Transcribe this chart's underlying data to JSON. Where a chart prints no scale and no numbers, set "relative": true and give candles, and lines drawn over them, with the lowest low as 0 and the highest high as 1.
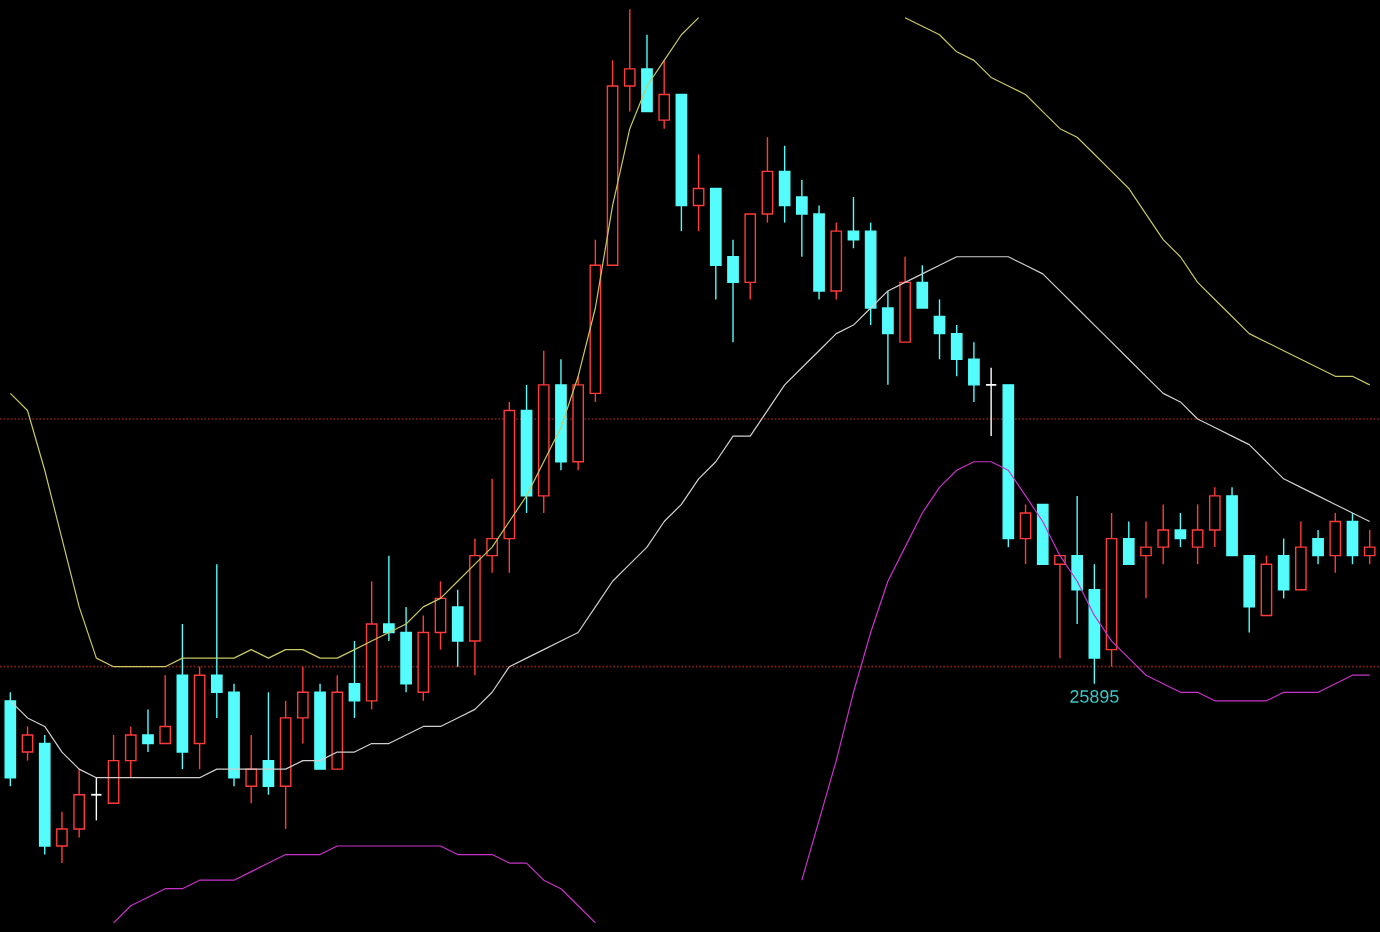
{
  "chart_data": {
    "type": "candlestick",
    "relative": true,
    "categories": [
      null,
      null,
      null,
      null,
      null,
      null,
      null,
      null,
      null,
      null,
      null,
      null,
      null,
      null,
      null,
      null,
      null,
      null,
      null,
      null,
      null,
      null,
      null,
      null,
      null,
      null,
      null,
      null,
      null,
      null,
      null,
      null,
      null,
      null,
      null,
      null,
      null,
      null,
      null,
      null,
      null,
      null,
      null,
      null,
      null,
      null,
      null,
      null,
      null,
      null,
      null,
      null,
      null,
      null,
      null,
      null,
      null,
      null,
      null,
      null,
      null,
      null,
      null,
      null,
      null,
      null,
      null,
      null,
      null,
      null,
      null,
      null,
      null,
      null,
      null,
      null,
      null,
      null,
      null,
      null
    ],
    "ohlc": [
      [
        0.19,
        0.2,
        0.09,
        0.1
      ],
      [
        0.13,
        0.16,
        0.12,
        0.15
      ],
      [
        0.14,
        0.15,
        0.01,
        0.02
      ],
      [
        0.02,
        0.06,
        0,
        0.04
      ],
      [
        0.04,
        0.11,
        0.03,
        0.08
      ],
      [
        0.08,
        0.1,
        0.05,
        0.08
      ],
      [
        0.07,
        0.15,
        0.07,
        0.12
      ],
      [
        0.12,
        0.16,
        0.1,
        0.15
      ],
      [
        0.15,
        0.18,
        0.13,
        0.14
      ],
      [
        0.14,
        0.22,
        0.14,
        0.16
      ],
      [
        0.22,
        0.28,
        0.11,
        0.13
      ],
      [
        0.14,
        0.23,
        0.11,
        0.22
      ],
      [
        0.22,
        0.35,
        0.17,
        0.2
      ],
      [
        0.2,
        0.21,
        0.09,
        0.1
      ],
      [
        0.09,
        0.15,
        0.07,
        0.11
      ],
      [
        0.12,
        0.2,
        0.08,
        0.09
      ],
      [
        0.09,
        0.19,
        0.04,
        0.17
      ],
      [
        0.17,
        0.23,
        0.14,
        0.2
      ],
      [
        0.2,
        0.21,
        0.11,
        0.11
      ],
      [
        0.11,
        0.22,
        0.11,
        0.2
      ],
      [
        0.21,
        0.26,
        0.17,
        0.19
      ],
      [
        0.19,
        0.33,
        0.18,
        0.28
      ],
      [
        0.28,
        0.36,
        0.26,
        0.27
      ],
      [
        0.27,
        0.3,
        0.2,
        0.21
      ],
      [
        0.2,
        0.29,
        0.19,
        0.27
      ],
      [
        0.27,
        0.33,
        0.25,
        0.31
      ],
      [
        0.3,
        0.32,
        0.23,
        0.26
      ],
      [
        0.26,
        0.38,
        0.22,
        0.36
      ],
      [
        0.36,
        0.45,
        0.34,
        0.38
      ],
      [
        0.38,
        0.54,
        0.34,
        0.53
      ],
      [
        0.53,
        0.56,
        0.41,
        0.43
      ],
      [
        0.43,
        0.6,
        0.41,
        0.56
      ],
      [
        0.56,
        0.59,
        0.46,
        0.47
      ],
      [
        0.47,
        0.57,
        0.46,
        0.56
      ],
      [
        0.55,
        0.73,
        0.54,
        0.7
      ],
      [
        0.7,
        0.94,
        0.7,
        0.91
      ],
      [
        0.91,
        1,
        0.88,
        0.93
      ],
      [
        0.93,
        0.97,
        0.88,
        0.88
      ],
      [
        0.87,
        0.94,
        0.86,
        0.9
      ],
      [
        0.9,
        0.9,
        0.74,
        0.77
      ],
      [
        0.77,
        0.83,
        0.74,
        0.79
      ],
      [
        0.79,
        0.79,
        0.66,
        0.7
      ],
      [
        0.71,
        0.73,
        0.61,
        0.68
      ],
      [
        0.68,
        0.76,
        0.66,
        0.76
      ],
      [
        0.76,
        0.85,
        0.75,
        0.81
      ],
      [
        0.81,
        0.84,
        0.75,
        0.77
      ],
      [
        0.78,
        0.8,
        0.71,
        0.76
      ],
      [
        0.76,
        0.77,
        0.66,
        0.67
      ],
      [
        0.67,
        0.75,
        0.66,
        0.74
      ],
      [
        0.74,
        0.78,
        0.72,
        0.73
      ],
      [
        0.74,
        0.75,
        0.63,
        0.65
      ],
      [
        0.65,
        0.67,
        0.56,
        0.62
      ],
      [
        0.61,
        0.71,
        0.61,
        0.68
      ],
      [
        0.68,
        0.7,
        0.65,
        0.65
      ],
      [
        0.64,
        0.66,
        0.59,
        0.62
      ],
      [
        0.62,
        0.63,
        0.57,
        0.59
      ],
      [
        0.59,
        0.61,
        0.54,
        0.56
      ],
      [
        0.56,
        0.58,
        0.5,
        0.56
      ],
      [
        0.56,
        0.56,
        0.37,
        0.38
      ],
      [
        0.38,
        0.42,
        0.35,
        0.41
      ],
      [
        0.42,
        0.42,
        0.35,
        0.35
      ],
      [
        0.35,
        0.36,
        0.24,
        0.36
      ],
      [
        0.36,
        0.43,
        0.28,
        0.32
      ],
      [
        0.32,
        0.35,
        0.21,
        0.24
      ],
      [
        0.25,
        0.41,
        0.23,
        0.38
      ],
      [
        0.38,
        0.4,
        0.35,
        0.35
      ],
      [
        0.36,
        0.4,
        0.31,
        0.37
      ],
      [
        0.37,
        0.42,
        0.35,
        0.39
      ],
      [
        0.39,
        0.41,
        0.37,
        0.38
      ],
      [
        0.37,
        0.42,
        0.35,
        0.39
      ],
      [
        0.39,
        0.44,
        0.37,
        0.43
      ],
      [
        0.43,
        0.44,
        0.36,
        0.36
      ],
      [
        0.36,
        0.36,
        0.27,
        0.3
      ],
      [
        0.29,
        0.36,
        0.29,
        0.35
      ],
      [
        0.36,
        0.38,
        0.31,
        0.32
      ],
      [
        0.32,
        0.4,
        0.32,
        0.37
      ],
      [
        0.38,
        0.39,
        0.35,
        0.36
      ],
      [
        0.36,
        0.41,
        0.34,
        0.4
      ],
      [
        0.4,
        0.41,
        0.35,
        0.36
      ],
      [
        0.36,
        0.39,
        0.35,
        0.37
      ]
    ],
    "colors": [
      "#54fcfc",
      "#ff3b3b",
      "#54fcfc",
      "#ff3b3b",
      "#ff3b3b",
      "#ffffff",
      "#ff3b3b",
      "#ff3b3b",
      "#54fcfc",
      "#ff3b3b",
      "#54fcfc",
      "#ff3b3b",
      "#54fcfc",
      "#54fcfc",
      "#ff3b3b",
      "#54fcfc",
      "#ff3b3b",
      "#ff3b3b",
      "#54fcfc",
      "#ff3b3b",
      "#54fcfc",
      "#ff3b3b",
      "#54fcfc",
      "#54fcfc",
      "#ff3b3b",
      "#ff3b3b",
      "#54fcfc",
      "#ff3b3b",
      "#ff3b3b",
      "#ff3b3b",
      "#54fcfc",
      "#ff3b3b",
      "#54fcfc",
      "#ff3b3b",
      "#ff3b3b",
      "#ff3b3b",
      "#ff3b3b",
      "#54fcfc",
      "#ff3b3b",
      "#54fcfc",
      "#ff3b3b",
      "#54fcfc",
      "#54fcfc",
      "#ff3b3b",
      "#ff3b3b",
      "#54fcfc",
      "#54fcfc",
      "#54fcfc",
      "#ff3b3b",
      "#54fcfc",
      "#54fcfc",
      "#54fcfc",
      "#ff3b3b",
      "#54fcfc",
      "#54fcfc",
      "#54fcfc",
      "#54fcfc",
      "#ffffff",
      "#54fcfc",
      "#ff3b3b",
      "#54fcfc",
      "#ff3b3b",
      "#54fcfc",
      "#54fcfc",
      "#ff3b3b",
      "#54fcfc",
      "#ff3b3b",
      "#ff3b3b",
      "#54fcfc",
      "#ff3b3b",
      "#ff3b3b",
      "#54fcfc",
      "#54fcfc",
      "#ff3b3b",
      "#54fcfc",
      "#ff3b3b",
      "#54fcfc",
      "#ff3b3b",
      "#54fcfc",
      "#ff3b3b"
    ],
    "series": [
      {
        "type": "line",
        "color": "#c8c864",
        "values": [
          0.55,
          0.53,
          0.46,
          0.38,
          0.3,
          0.24,
          0.23,
          0.23,
          0.23,
          0.23,
          0.24,
          0.24,
          0.24,
          0.24,
          0.25,
          0.24,
          0.25,
          0.25,
          0.24,
          0.24,
          0.25,
          0.26,
          0.27,
          0.28,
          0.3,
          0.31,
          0.33,
          0.35,
          0.37,
          0.4,
          0.43,
          0.47,
          0.51,
          0.57,
          0.65,
          0.77,
          0.86,
          0.91,
          0.94,
          0.97,
          0.99,
          null,
          null,
          null,
          null,
          null,
          null,
          null,
          null,
          null,
          null,
          null,
          0.99,
          0.98,
          0.97,
          0.95,
          0.94,
          0.92,
          0.91,
          0.9,
          0.88,
          0.86,
          0.85,
          0.83,
          0.81,
          0.79,
          0.76,
          0.73,
          0.71,
          0.68,
          0.66,
          0.64,
          0.62,
          0.61,
          0.6,
          0.59,
          0.58,
          0.57,
          0.57,
          0.56
        ]
      },
      {
        "type": "line",
        "color": "#d0d0d0",
        "values": [
          0.19,
          0.17,
          0.16,
          0.13,
          0.11,
          0.1,
          0.1,
          0.1,
          0.1,
          0.1,
          0.1,
          0.1,
          0.11,
          0.11,
          0.11,
          0.11,
          0.11,
          0.12,
          0.12,
          0.13,
          0.13,
          0.14,
          0.14,
          0.15,
          0.16,
          0.16,
          0.17,
          0.18,
          0.2,
          0.23,
          0.24,
          0.25,
          0.26,
          0.27,
          0.3,
          0.33,
          0.35,
          0.37,
          0.4,
          0.42,
          0.45,
          0.47,
          0.5,
          0.5,
          0.53,
          0.56,
          0.58,
          0.6,
          0.62,
          0.63,
          0.65,
          0.67,
          0.68,
          0.69,
          0.7,
          0.71,
          0.71,
          0.71,
          0.71,
          0.7,
          0.69,
          0.67,
          0.65,
          0.63,
          0.61,
          0.59,
          0.57,
          0.55,
          0.54,
          0.52,
          0.51,
          0.5,
          0.49,
          0.47,
          0.45,
          0.44,
          0.43,
          0.42,
          0.41,
          0.4
        ]
      },
      {
        "type": "line",
        "color": "#c832c8",
        "values": [
          null,
          null,
          null,
          null,
          null,
          null,
          -0.07,
          -0.05,
          -0.04,
          -0.03,
          -0.03,
          -0.02,
          -0.02,
          -0.02,
          -0.01,
          0.0,
          0.01,
          0.01,
          0.01,
          0.02,
          0.02,
          0.02,
          0.02,
          0.02,
          0.02,
          0.02,
          0.01,
          0.01,
          0.01,
          0.0,
          0.0,
          -0.02,
          -0.03,
          -0.05,
          -0.07,
          null,
          null,
          null,
          null,
          null,
          null,
          null,
          null,
          null,
          null,
          null,
          -0.02,
          0.05,
          0.12,
          0.2,
          0.27,
          0.33,
          0.37,
          0.41,
          0.44,
          0.46,
          0.47,
          0.47,
          0.46,
          0.43,
          0.4,
          0.36,
          0.33,
          0.29,
          0.26,
          0.24,
          0.22,
          0.21,
          0.2,
          0.2,
          0.19,
          0.19,
          0.19,
          0.19,
          0.2,
          0.2,
          0.2,
          0.21,
          0.22,
          0.22
        ]
      }
    ],
    "ref_lines": [
      {
        "axis": "y",
        "value": 0.52,
        "color": "#8b2020",
        "line_style": "dotted"
      },
      {
        "axis": "y",
        "value": 0.23,
        "color": "#8b2020",
        "line_style": "dotted"
      }
    ],
    "annotations": [
      {
        "text": "25895",
        "y": 0.21
      }
    ]
  }
}
